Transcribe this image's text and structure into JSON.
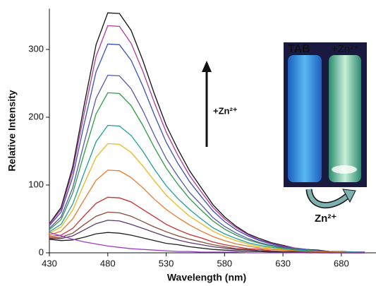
{
  "chart_data": {
    "type": "line",
    "x_label": "Wavelength (nm)",
    "y_label": "Relative Intensity",
    "annotation": "+Zn²⁺",
    "inset_labels": [
      "TAB",
      "+Zn²⁺",
      "Zn²⁺"
    ],
    "x": [
      430,
      440,
      450,
      460,
      470,
      480,
      490,
      500,
      510,
      520,
      530,
      540,
      550,
      560,
      570,
      580,
      590,
      600,
      610,
      620,
      630,
      640,
      650,
      660,
      670,
      680,
      690,
      700
    ],
    "xlim": [
      430,
      700
    ],
    "xticks": [
      430,
      480,
      530,
      580,
      630,
      680
    ],
    "ylim": [
      0,
      360
    ],
    "yticks": [
      0,
      100,
      200,
      300
    ],
    "series": [
      {
        "color": "#111111",
        "values": [
          43,
          67,
          127,
          220,
          307,
          354,
          353,
          328,
          284,
          234,
          188,
          153,
          121,
          96,
          71,
          53,
          39,
          28,
          21,
          15,
          11,
          7,
          5,
          4,
          2,
          2,
          1,
          1
        ]
      },
      {
        "color": "#b0379c",
        "values": [
          42,
          64,
          121,
          208,
          290,
          335,
          334,
          309,
          268,
          221,
          178,
          144,
          114,
          90,
          67,
          50,
          37,
          27,
          19,
          14,
          10,
          7,
          5,
          3,
          2,
          2,
          1,
          1
        ]
      },
      {
        "color": "#3a4fb8",
        "values": [
          40,
          60,
          112,
          192,
          267,
          308,
          307,
          284,
          246,
          203,
          163,
          132,
          105,
          83,
          62,
          46,
          34,
          25,
          18,
          13,
          9,
          6,
          5,
          3,
          2,
          2,
          1,
          1
        ]
      },
      {
        "color": "#5558a8",
        "values": [
          36,
          53,
          96,
          164,
          228,
          262,
          261,
          242,
          210,
          173,
          139,
          113,
          89,
          71,
          52,
          39,
          29,
          21,
          15,
          11,
          8,
          6,
          4,
          3,
          2,
          1,
          1,
          1
        ]
      },
      {
        "color": "#2f9a48",
        "values": [
          34,
          49,
          88,
          148,
          205,
          236,
          235,
          217,
          188,
          155,
          125,
          101,
          80,
          63,
          47,
          35,
          26,
          19,
          14,
          10,
          7,
          5,
          4,
          2,
          2,
          1,
          1,
          0
        ]
      },
      {
        "color": "#1f9c9a",
        "values": [
          31,
          42,
          72,
          119,
          164,
          188,
          187,
          173,
          150,
          123,
          99,
          80,
          64,
          50,
          37,
          28,
          21,
          15,
          11,
          8,
          6,
          4,
          3,
          2,
          1,
          1,
          1,
          0
        ]
      },
      {
        "color": "#e8b820",
        "values": [
          29,
          38,
          63,
          103,
          141,
          161,
          160,
          148,
          128,
          106,
          85,
          69,
          54,
          43,
          32,
          24,
          18,
          13,
          9,
          7,
          5,
          3,
          2,
          2,
          1,
          1,
          0,
          0
        ]
      },
      {
        "color": "#e8782a",
        "values": [
          26,
          32,
          50,
          79,
          107,
          122,
          121,
          111,
          96,
          79,
          64,
          52,
          41,
          32,
          24,
          18,
          13,
          10,
          7,
          5,
          4,
          3,
          2,
          1,
          1,
          1,
          0,
          0
        ]
      },
      {
        "color": "#c83030",
        "values": [
          24,
          26,
          36,
          55,
          73,
          82,
          81,
          75,
          64,
          53,
          42,
          34,
          27,
          22,
          16,
          12,
          9,
          6,
          5,
          3,
          2,
          2,
          1,
          1,
          1,
          0,
          0,
          0
        ]
      },
      {
        "color": "#8a4a34",
        "values": [
          22,
          23,
          29,
          42,
          54,
          60,
          59,
          54,
          46,
          38,
          31,
          25,
          20,
          16,
          12,
          9,
          6,
          5,
          3,
          2,
          2,
          1,
          1,
          1,
          0,
          0,
          0,
          0
        ]
      },
      {
        "color": "#5a3a6a",
        "values": [
          21,
          21,
          25,
          34,
          43,
          48,
          47,
          42,
          36,
          30,
          24,
          19,
          15,
          12,
          9,
          7,
          5,
          4,
          3,
          2,
          1,
          1,
          1,
          0,
          0,
          0,
          0,
          0
        ]
      },
      {
        "color": "#202020",
        "values": [
          20,
          18,
          19,
          23,
          28,
          30,
          29,
          26,
          22,
          18,
          14,
          12,
          9,
          7,
          5,
          4,
          3,
          2,
          2,
          1,
          1,
          1,
          0,
          0,
          0,
          0,
          0,
          0
        ]
      },
      {
        "color": "#9a40c8",
        "values": [
          30,
          25,
          20,
          16,
          13,
          10,
          8,
          6,
          5,
          4,
          3,
          2,
          2,
          1,
          1,
          1,
          1,
          0,
          0,
          0,
          0,
          0,
          0,
          0,
          0,
          0,
          0,
          0
        ]
      }
    ]
  }
}
